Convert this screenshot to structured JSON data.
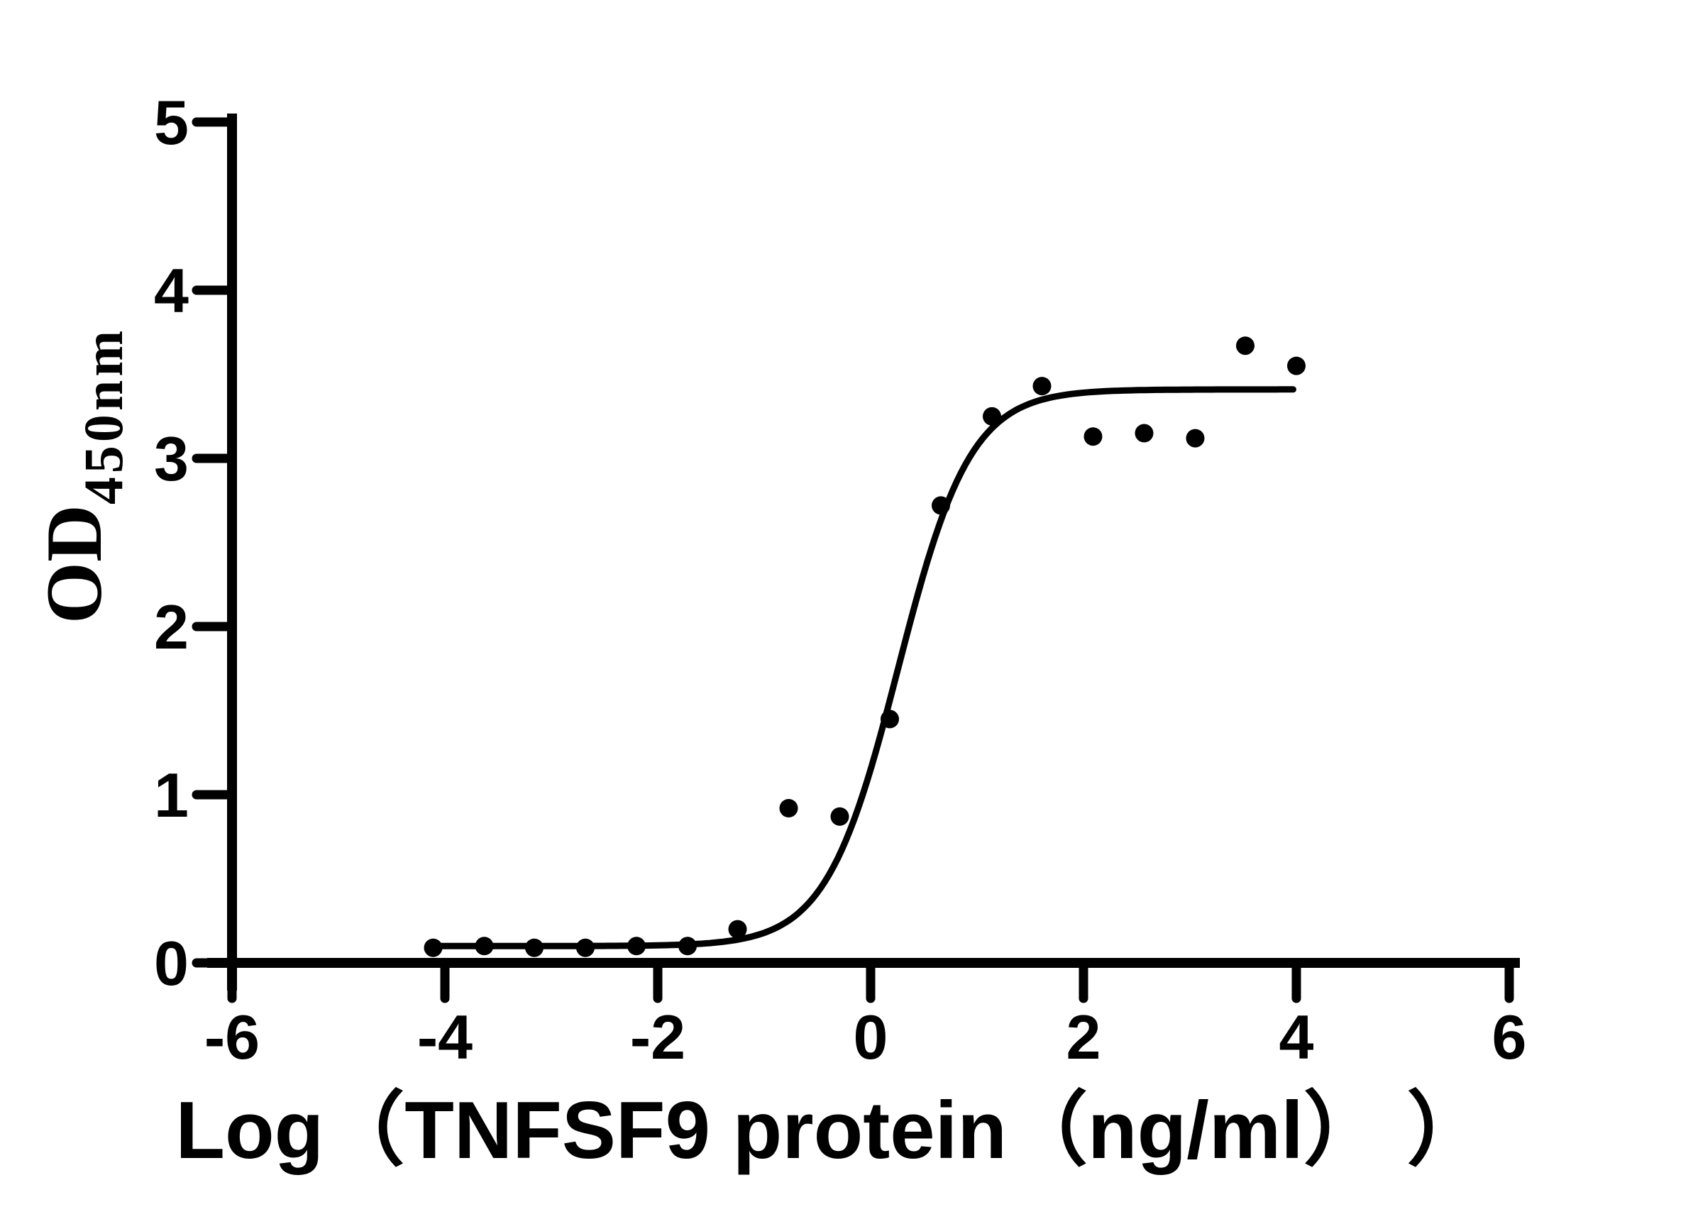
{
  "chart_data": {
    "type": "scatter",
    "title": "",
    "xlabel": "Log（TNFSF9 protein（ng/ml） ）",
    "ylabel": "OD",
    "ylabel_sub": "450nm",
    "xlim": [
      -6,
      6
    ],
    "ylim": [
      0,
      5
    ],
    "x_ticks": [
      -6,
      -4,
      -2,
      0,
      2,
      4,
      6
    ],
    "y_ticks": [
      0,
      1,
      2,
      3,
      4,
      5
    ],
    "grid": false,
    "legend": "none",
    "marker_color": "#000000",
    "line_color": "#000000",
    "axis_color": "#000000",
    "background_color": "#ffffff",
    "points": {
      "x": [
        -4.11,
        -3.63,
        -3.16,
        -2.68,
        -2.2,
        -1.72,
        -1.25,
        -0.77,
        -0.29,
        0.18,
        0.66,
        1.14,
        1.61,
        2.09,
        2.57,
        3.05,
        3.52,
        4.0
      ],
      "y": [
        0.09,
        0.1,
        0.09,
        0.09,
        0.1,
        0.1,
        0.2,
        0.92,
        0.87,
        1.45,
        2.72,
        3.25,
        3.43,
        3.13,
        3.15,
        3.12,
        3.67,
        3.55
      ]
    },
    "curve": {
      "model": "4PL-sigmoid",
      "bottom": 0.1,
      "top": 3.41,
      "logEC50": 0.26,
      "hillslope": 1.28,
      "x_start": -4.11,
      "x_end": 4.0
    }
  }
}
